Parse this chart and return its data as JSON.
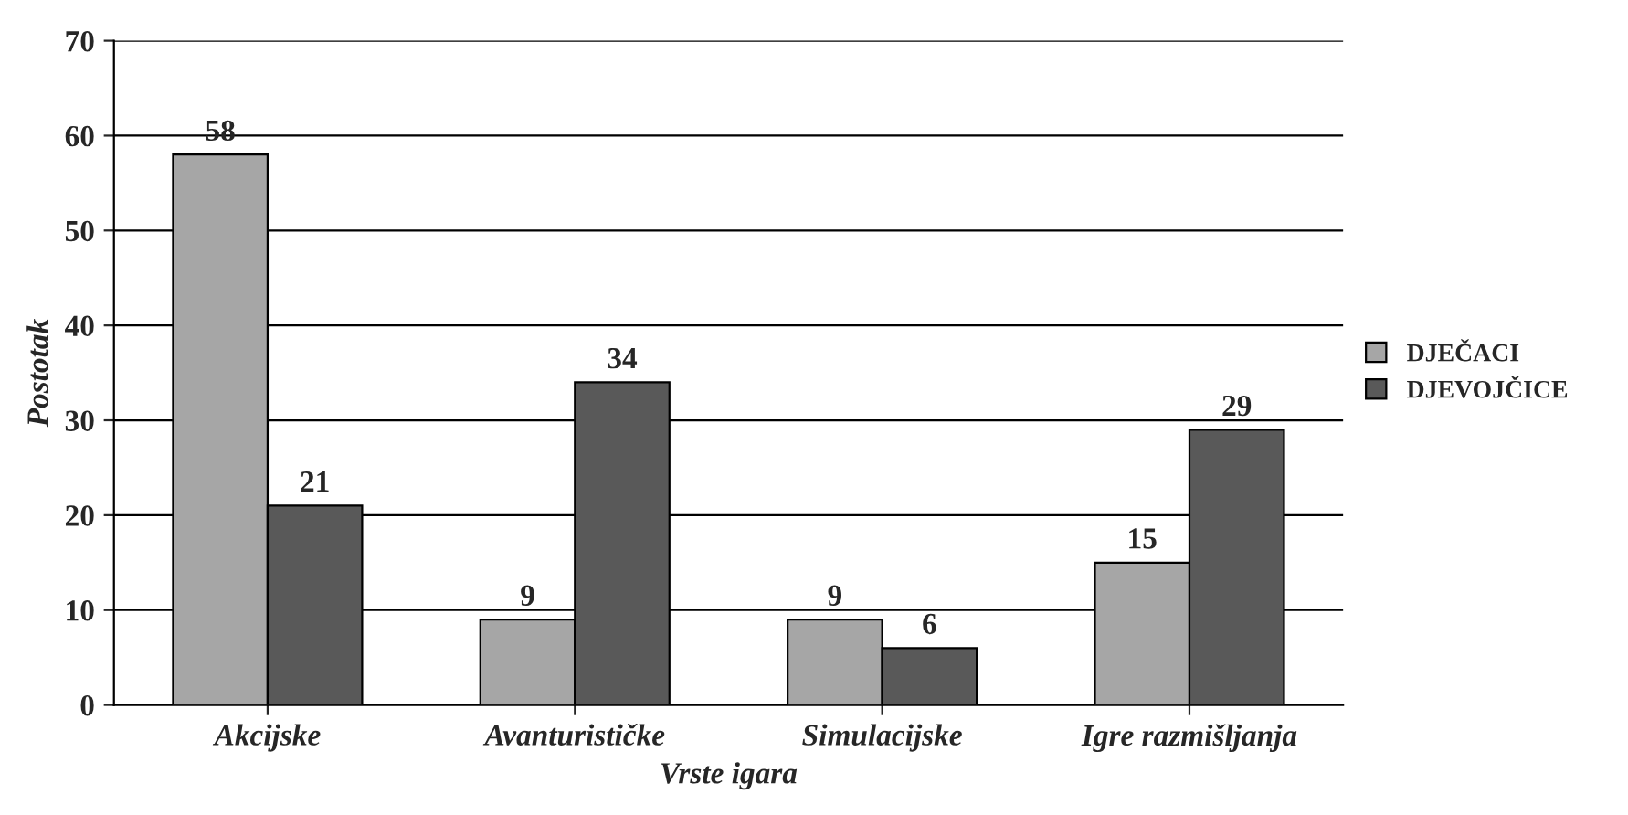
{
  "chart_data": {
    "type": "bar",
    "xlabel": "Vrste igara",
    "ylabel": "Postotak",
    "categories": [
      "Akcijske",
      "Avanturističke",
      "Simulacijske",
      "Igre razmišljanja"
    ],
    "series": [
      {
        "name": "DJEČACI",
        "color": "#a6a6a6",
        "values": [
          58,
          9,
          9,
          15
        ]
      },
      {
        "name": "DJEVOJČICE",
        "color": "#595959",
        "values": [
          21,
          34,
          6,
          29
        ]
      }
    ],
    "ylim": [
      0,
      70
    ],
    "yticks": [
      0,
      10,
      20,
      30,
      40,
      50,
      60,
      70
    ],
    "grid": "y",
    "legend": "right",
    "data_labels": true
  }
}
